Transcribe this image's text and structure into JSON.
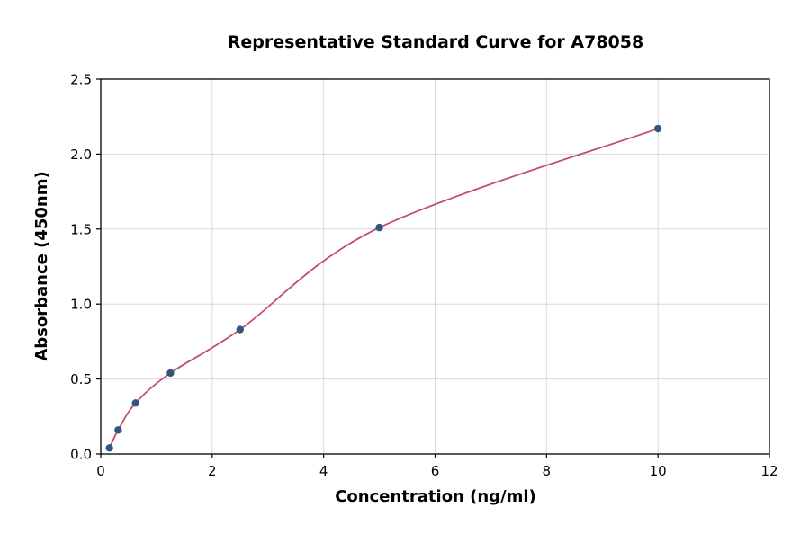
{
  "chart_data": {
    "type": "scatter",
    "title": "Representative Standard Curve for A78058",
    "xlabel": "Concentration (ng/ml)",
    "ylabel": "Absorbance (450nm)",
    "xlim": [
      0,
      12
    ],
    "ylim": [
      0,
      2.5
    ],
    "xticks": [
      0,
      2,
      4,
      6,
      8,
      10,
      12
    ],
    "xtick_labels": [
      "0",
      "2",
      "4",
      "6",
      "8",
      "10",
      "12"
    ],
    "yticks": [
      0,
      0.5,
      1.0,
      1.5,
      2.0,
      2.5
    ],
    "ytick_labels": [
      "0.0",
      "0.5",
      "1.0",
      "1.5",
      "2.0",
      "2.5"
    ],
    "grid": true,
    "legend": "none",
    "points": [
      {
        "x": 0.156,
        "y": 0.04
      },
      {
        "x": 0.313,
        "y": 0.16
      },
      {
        "x": 0.625,
        "y": 0.34
      },
      {
        "x": 1.25,
        "y": 0.54
      },
      {
        "x": 2.5,
        "y": 0.83
      },
      {
        "x": 5,
        "y": 1.51
      },
      {
        "x": 10,
        "y": 2.17
      }
    ],
    "fit": {
      "type": "smooth-curve-through-points"
    },
    "colors": {
      "curve": "#c14e6c",
      "points": "#35567c",
      "grid": "#d9d9d9",
      "frame": "#000000",
      "background": "#ffffff"
    }
  }
}
